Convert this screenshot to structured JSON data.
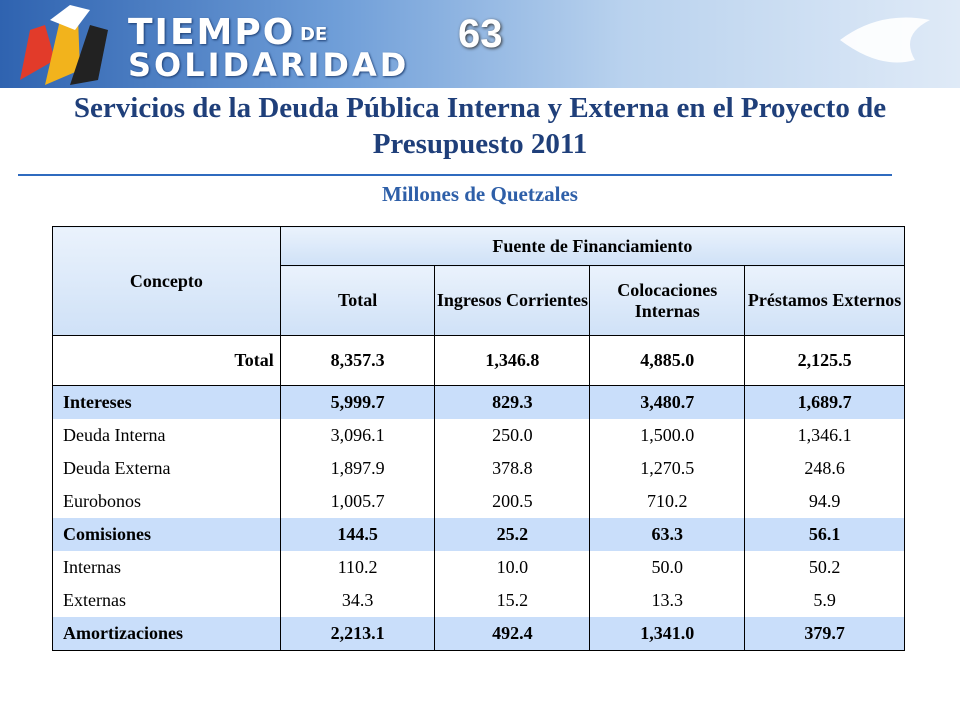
{
  "header": {
    "logo_word1": "TIEMPO",
    "logo_word2": "DE",
    "logo_word3": "SOLIDARIDAD",
    "page_number": "63"
  },
  "title": "Servicios de la Deuda Pública Interna y Externa en el Proyecto de Presupuesto 2011",
  "subtitle": "Millones de Quetzales",
  "table": {
    "concept_header": "Concepto",
    "group_header": "Fuente de Financiamiento",
    "columns": [
      "Total",
      "Ingresos Corrientes",
      "Colocaciones Internas",
      "Préstamos Externos"
    ],
    "highlight_color": "#c9defa",
    "rows": [
      {
        "cells": [
          "Total",
          "8,357.3",
          "1,346.8",
          "4,885.0",
          "2,125.5"
        ],
        "bold": true,
        "highlight": false
      },
      {
        "cells": [
          "Intereses",
          "5,999.7",
          "829.3",
          "3,480.7",
          "1,689.7"
        ],
        "bold": true,
        "highlight": true
      },
      {
        "cells": [
          "Deuda Interna",
          "3,096.1",
          "250.0",
          "1,500.0",
          "1,346.1"
        ],
        "bold": false,
        "highlight": false
      },
      {
        "cells": [
          "Deuda Externa",
          "1,897.9",
          "378.8",
          "1,270.5",
          "248.6"
        ],
        "bold": false,
        "highlight": false
      },
      {
        "cells": [
          "Eurobonos",
          "1,005.7",
          "200.5",
          "710.2",
          "94.9"
        ],
        "bold": false,
        "highlight": false
      },
      {
        "cells": [
          "Comisiones",
          "144.5",
          "25.2",
          "63.3",
          "56.1"
        ],
        "bold": true,
        "highlight": true
      },
      {
        "cells": [
          "Internas",
          "110.2",
          "10.0",
          "50.0",
          "50.2"
        ],
        "bold": false,
        "highlight": false
      },
      {
        "cells": [
          "Externas",
          "34.3",
          "15.2",
          "13.3",
          "5.9"
        ],
        "bold": false,
        "highlight": false
      },
      {
        "cells": [
          "Amortizaciones",
          "2,213.1",
          "492.4",
          "1,341.0",
          "379.7"
        ],
        "bold": true,
        "highlight": true
      }
    ]
  }
}
